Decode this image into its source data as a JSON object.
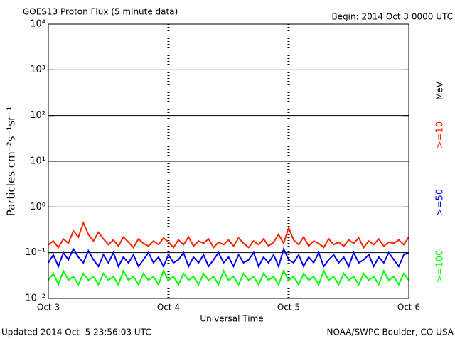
{
  "chart_data": {
    "type": "line",
    "title": "GOES13 Proton Flux (5 minute data)",
    "subtitle": "Begin: 2014 Oct 3 0000 UTC",
    "x_label": "Universal Time",
    "y_label": "Particles cm⁻²s⁻¹sr⁻¹",
    "legend_unit": "MeV",
    "footer_left": "Updated 2014 Oct  5 23:56:03 UTC",
    "footer_right": "NOAA/SWPC Boulder, CO USA",
    "log_scale": true,
    "grid": true,
    "xlim": [
      0,
      72
    ],
    "xticks": [
      {
        "value": 0,
        "label": "Oct 3"
      },
      {
        "value": 24,
        "label": "Oct 4"
      },
      {
        "value": 48,
        "label": "Oct 5"
      },
      {
        "value": 72,
        "label": "Oct 6"
      }
    ],
    "ylim": [
      0.01,
      10000
    ],
    "yticks": [
      {
        "value": 0.01,
        "label": "10⁻²"
      },
      {
        "value": 0.1,
        "label": "10⁻¹"
      },
      {
        "value": 1,
        "label": "10⁰"
      },
      {
        "value": 10,
        "label": "10¹"
      },
      {
        "value": 100,
        "label": "10²"
      },
      {
        "value": 1000,
        "label": "10³"
      },
      {
        "value": 10000,
        "label": "10⁴"
      }
    ],
    "x": [
      0,
      1,
      2,
      3,
      4,
      5,
      6,
      7,
      8,
      9,
      10,
      11,
      12,
      13,
      14,
      15,
      16,
      17,
      18,
      19,
      20,
      21,
      22,
      23,
      24,
      25,
      26,
      27,
      28,
      29,
      30,
      31,
      32,
      33,
      34,
      35,
      36,
      37,
      38,
      39,
      40,
      41,
      42,
      43,
      44,
      45,
      46,
      47,
      48,
      49,
      50,
      51,
      52,
      53,
      54,
      55,
      56,
      57,
      58,
      59,
      60,
      61,
      62,
      63,
      64,
      65,
      66,
      67,
      68,
      69,
      70,
      71,
      72
    ],
    "series": [
      {
        "name": ">=100",
        "color": "#00ff00",
        "values": [
          0.025,
          0.035,
          0.02,
          0.04,
          0.025,
          0.03,
          0.02,
          0.035,
          0.025,
          0.03,
          0.02,
          0.035,
          0.025,
          0.03,
          0.02,
          0.04,
          0.025,
          0.03,
          0.02,
          0.035,
          0.025,
          0.03,
          0.02,
          0.04,
          0.025,
          0.03,
          0.02,
          0.035,
          0.025,
          0.03,
          0.02,
          0.035,
          0.025,
          0.03,
          0.02,
          0.04,
          0.025,
          0.03,
          0.02,
          0.035,
          0.025,
          0.03,
          0.02,
          0.035,
          0.025,
          0.03,
          0.02,
          0.04,
          0.025,
          0.03,
          0.02,
          0.035,
          0.025,
          0.03,
          0.02,
          0.04,
          0.025,
          0.03,
          0.02,
          0.035,
          0.025,
          0.03,
          0.02,
          0.035,
          0.025,
          0.03,
          0.02,
          0.04,
          0.025,
          0.03,
          0.02,
          0.035,
          0.025
        ]
      },
      {
        "name": ">=50",
        "color": "#0000ff",
        "values": [
          0.06,
          0.09,
          0.05,
          0.1,
          0.07,
          0.12,
          0.08,
          0.06,
          0.11,
          0.07,
          0.05,
          0.09,
          0.06,
          0.1,
          0.05,
          0.08,
          0.06,
          0.09,
          0.05,
          0.07,
          0.1,
          0.06,
          0.08,
          0.05,
          0.09,
          0.06,
          0.07,
          0.1,
          0.05,
          0.08,
          0.06,
          0.09,
          0.05,
          0.07,
          0.1,
          0.06,
          0.08,
          0.05,
          0.09,
          0.06,
          0.07,
          0.1,
          0.05,
          0.08,
          0.06,
          0.09,
          0.05,
          0.12,
          0.07,
          0.06,
          0.09,
          0.05,
          0.08,
          0.06,
          0.1,
          0.05,
          0.07,
          0.09,
          0.06,
          0.08,
          0.05,
          0.1,
          0.06,
          0.07,
          0.09,
          0.05,
          0.08,
          0.06,
          0.1,
          0.07,
          0.05,
          0.09,
          0.1
        ]
      },
      {
        "name": ">=10",
        "color": "#ff2000",
        "values": [
          0.15,
          0.18,
          0.13,
          0.2,
          0.16,
          0.3,
          0.22,
          0.45,
          0.25,
          0.18,
          0.28,
          0.2,
          0.15,
          0.19,
          0.14,
          0.22,
          0.17,
          0.13,
          0.2,
          0.16,
          0.14,
          0.18,
          0.15,
          0.21,
          0.17,
          0.13,
          0.19,
          0.15,
          0.22,
          0.14,
          0.18,
          0.16,
          0.2,
          0.13,
          0.17,
          0.15,
          0.19,
          0.14,
          0.21,
          0.16,
          0.13,
          0.18,
          0.15,
          0.2,
          0.14,
          0.17,
          0.25,
          0.16,
          0.35,
          0.19,
          0.15,
          0.22,
          0.14,
          0.18,
          0.16,
          0.13,
          0.2,
          0.15,
          0.17,
          0.14,
          0.19,
          0.16,
          0.21,
          0.13,
          0.18,
          0.15,
          0.2,
          0.14,
          0.17,
          0.16,
          0.19,
          0.15,
          0.22
        ]
      }
    ]
  }
}
